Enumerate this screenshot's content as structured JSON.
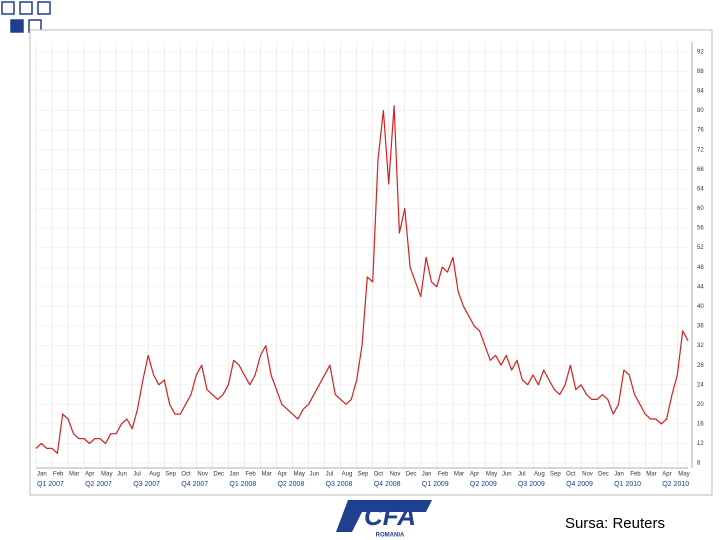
{
  "chart_data": {
    "type": "line",
    "categories": [
      "Jan",
      null,
      null,
      "Feb",
      null,
      null,
      "Mar",
      null,
      null,
      "Apr",
      null,
      null,
      "May",
      null,
      null,
      "Jun",
      null,
      null,
      "Jul",
      null,
      null,
      "Aug",
      null,
      null,
      "Sep",
      null,
      null,
      "Oct",
      null,
      null,
      "Nov",
      null,
      null,
      "Dec",
      null,
      null,
      "Jan",
      null,
      null,
      "Feb",
      null,
      null,
      "Mar",
      null,
      null,
      "Apr",
      null,
      null,
      "May",
      null,
      null,
      "Jun",
      null,
      null,
      "Jul",
      null,
      null,
      "Aug",
      null,
      null,
      "Sep",
      null,
      null,
      "Oct",
      null,
      null,
      "Nov",
      null,
      null,
      "Dec",
      null,
      null,
      "Jan",
      null,
      null,
      "Feb",
      null,
      null,
      "Mar",
      null,
      null,
      "Apr",
      null,
      null,
      "May",
      null,
      null,
      "Jun",
      null,
      null,
      "Jul",
      null,
      null,
      "Aug",
      null,
      null,
      "Sep",
      null,
      null,
      "Oct",
      null,
      null,
      "Nov",
      null,
      null,
      "Dec",
      null,
      null,
      "Jan",
      null,
      null,
      "Feb",
      null,
      null,
      "Mar",
      null,
      null,
      "Apr",
      null,
      null,
      "May",
      null,
      null
    ],
    "quarter_labels": [
      "Q1 2007",
      "Q2 2007",
      "Q3 2007",
      "Q4 2007",
      "Q1 2008",
      "Q2 2008",
      "Q3 2008",
      "Q4 2008",
      "Q1 2009",
      "Q2 2009",
      "Q3 2009",
      "Q4 2009",
      "Q1 2010",
      "Q2 2010"
    ],
    "values": [
      11,
      12,
      11,
      11,
      10,
      18,
      17,
      14,
      13,
      13,
      12,
      13,
      13,
      12,
      14,
      14,
      16,
      17,
      15,
      19,
      25,
      30,
      26,
      24,
      25,
      20,
      18,
      18,
      20,
      22,
      26,
      28,
      23,
      22,
      21,
      22,
      24,
      29,
      28,
      26,
      24,
      26,
      30,
      32,
      26,
      23,
      20,
      19,
      18,
      17,
      19,
      20,
      22,
      24,
      26,
      28,
      22,
      21,
      20,
      21,
      25,
      32,
      46,
      45,
      70,
      80,
      65,
      81,
      55,
      60,
      48,
      45,
      42,
      50,
      45,
      44,
      48,
      47,
      50,
      43,
      40,
      38,
      36,
      35,
      32,
      29,
      30,
      28,
      30,
      27,
      29,
      25,
      24,
      26,
      24,
      27,
      25,
      23,
      22,
      24,
      28,
      23,
      24,
      22,
      21,
      21,
      22,
      21,
      18,
      20,
      27,
      26,
      22,
      20,
      18,
      17,
      17,
      16,
      17,
      22,
      26,
      35,
      33
    ],
    "color": "#d42020",
    "ylim": [
      7,
      94
    ],
    "yticks": [
      8,
      12,
      16,
      20,
      24,
      28,
      32,
      36,
      40,
      44,
      48,
      52,
      56,
      60,
      64,
      68,
      72,
      76,
      80,
      84,
      88,
      92
    ],
    "grid": true
  },
  "source": "Sursa: Reuters",
  "logo": {
    "name": "CFA",
    "sub": "ROMANIA"
  }
}
